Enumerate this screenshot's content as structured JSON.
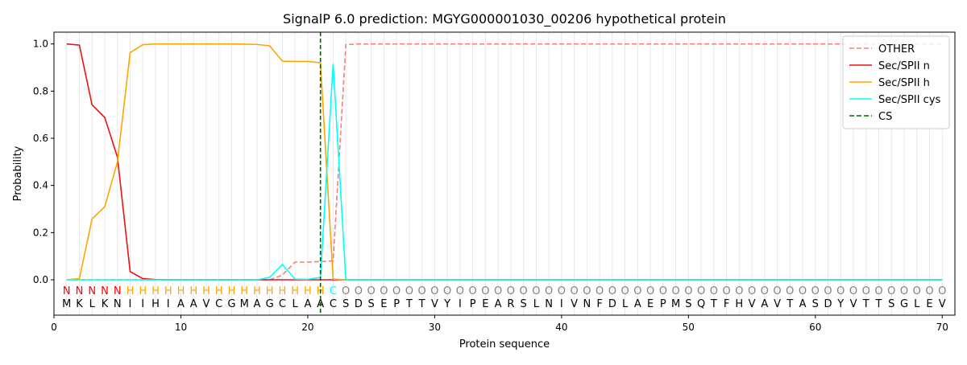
{
  "chart_data": {
    "type": "line",
    "title": "SignalP 6.0 prediction: MGYG000001030_00206 hypothetical protein",
    "xlabel": "Protein sequence",
    "ylabel": "Probability",
    "xlim": [
      0,
      71
    ],
    "ylim": [
      -0.15,
      1.05
    ],
    "xticks": [
      0,
      10,
      20,
      30,
      40,
      50,
      60,
      70
    ],
    "yticks": [
      {
        "value": 0,
        "label": "0.0"
      },
      {
        "value": 0.2,
        "label": "0.2"
      },
      {
        "value": 0.4,
        "label": "0.4"
      },
      {
        "value": 0.6,
        "label": "0.6"
      },
      {
        "value": 0.8,
        "label": "0.8"
      },
      {
        "value": 1,
        "label": "1.0"
      }
    ],
    "legend": "upper right",
    "x": [
      1,
      2,
      3,
      4,
      5,
      6,
      7,
      8,
      9,
      10,
      11,
      12,
      13,
      14,
      15,
      16,
      17,
      18,
      19,
      20,
      21,
      22,
      23,
      24,
      25,
      26,
      27,
      28,
      29,
      30,
      31,
      32,
      33,
      34,
      35,
      36,
      37,
      38,
      39,
      40,
      41,
      42,
      43,
      44,
      45,
      46,
      47,
      48,
      49,
      50,
      51,
      52,
      53,
      54,
      55,
      56,
      57,
      58,
      59,
      60,
      61,
      62,
      63,
      64,
      65,
      66,
      67,
      68,
      69,
      70
    ],
    "residues": [
      "M",
      "K",
      "L",
      "K",
      "N",
      "I",
      "I",
      "H",
      "I",
      "A",
      "A",
      "V",
      "C",
      "G",
      "M",
      "A",
      "G",
      "C",
      "L",
      "A",
      "A",
      "C",
      "S",
      "D",
      "S",
      "E",
      "P",
      "T",
      "T",
      "V",
      "Y",
      "I",
      "P",
      "E",
      "A",
      "R",
      "S",
      "L",
      "N",
      "I",
      "V",
      "N",
      "F",
      "D",
      "L",
      "A",
      "E",
      "P",
      "M",
      "S",
      "Q",
      "T",
      "F",
      "H",
      "V",
      "A",
      "V",
      "T",
      "A",
      "S",
      "D",
      "Y",
      "V",
      "T",
      "T",
      "S",
      "G",
      "L",
      "E",
      "V"
    ],
    "labels": [
      "N",
      "N",
      "N",
      "N",
      "N",
      "H",
      "H",
      "H",
      "H",
      "H",
      "H",
      "H",
      "H",
      "H",
      "H",
      "H",
      "H",
      "H",
      "H",
      "H",
      "H",
      "C",
      "O",
      "O",
      "O",
      "O",
      "O",
      "O",
      "O",
      "O",
      "O",
      "O",
      "O",
      "O",
      "O",
      "O",
      "O",
      "O",
      "O",
      "O",
      "O",
      "O",
      "O",
      "O",
      "O",
      "O",
      "O",
      "O",
      "O",
      "O",
      "O",
      "O",
      "O",
      "O",
      "O",
      "O",
      "O",
      "O",
      "O",
      "O",
      "O",
      "O",
      "O",
      "O",
      "O",
      "O",
      "O",
      "O",
      "O",
      "O"
    ],
    "label_colors": {
      "N": "red",
      "H": "orange",
      "C": "cyan",
      "O": "gray"
    },
    "series": [
      {
        "name": "OTHER",
        "color": "#f08080",
        "dashed": true,
        "values": [
          0,
          0,
          0,
          0,
          0,
          0,
          0,
          0,
          0,
          0,
          0,
          0,
          0,
          0,
          0,
          0,
          0,
          0.02,
          0.075,
          0.075,
          0.077,
          0.08,
          0.997,
          1,
          1,
          1,
          1,
          1,
          1,
          1,
          1,
          1,
          1,
          1,
          1,
          1,
          1,
          1,
          1,
          1,
          1,
          1,
          1,
          1,
          1,
          1,
          1,
          1,
          1,
          1,
          1,
          1,
          1,
          1,
          1,
          1,
          1,
          1,
          1,
          1,
          1,
          1,
          1,
          1,
          1,
          1,
          1,
          1,
          1,
          1
        ]
      },
      {
        "name": "Sec/SPII n",
        "color": "#ee1111",
        "values": [
          1.0,
          0.995,
          0.742,
          0.688,
          0.52,
          0.035,
          0.005,
          0.001,
          0,
          0,
          0,
          0,
          0,
          0,
          0,
          0,
          0,
          0,
          0,
          0,
          0,
          0,
          0,
          0,
          0,
          0,
          0,
          0,
          0,
          0,
          0,
          0,
          0,
          0,
          0,
          0,
          0,
          0,
          0,
          0,
          0,
          0,
          0,
          0,
          0,
          0,
          0,
          0,
          0,
          0,
          0,
          0,
          0,
          0,
          0,
          0,
          0,
          0,
          0,
          0,
          0,
          0,
          0,
          0,
          0,
          0,
          0,
          0,
          0,
          0
        ]
      },
      {
        "name": "Sec/SPII h",
        "color": "#ffa500",
        "values": [
          0,
          0.005,
          0.258,
          0.31,
          0.5,
          0.963,
          0.997,
          1,
          1,
          1,
          1,
          1,
          1,
          1,
          0.999,
          0.998,
          0.992,
          0.927,
          0.926,
          0.926,
          0.92,
          0.003,
          0,
          0,
          0,
          0,
          0,
          0,
          0,
          0,
          0,
          0,
          0,
          0,
          0,
          0,
          0,
          0,
          0,
          0,
          0,
          0,
          0,
          0,
          0,
          0,
          0,
          0,
          0,
          0,
          0,
          0,
          0,
          0,
          0,
          0,
          0,
          0,
          0,
          0,
          0,
          0,
          0,
          0,
          0,
          0,
          0,
          0,
          0,
          0
        ]
      },
      {
        "name": "Sec/SPII cys",
        "color": "#00ffff",
        "values": [
          0,
          0,
          0,
          0,
          0,
          0,
          0,
          0,
          0,
          0,
          0,
          0,
          0,
          0,
          0,
          0,
          0.01,
          0.065,
          0.003,
          0.002,
          0.01,
          0.915,
          0,
          0,
          0,
          0,
          0,
          0,
          0,
          0,
          0,
          0,
          0,
          0,
          0,
          0,
          0,
          0,
          0,
          0,
          0,
          0,
          0,
          0,
          0,
          0,
          0,
          0,
          0,
          0,
          0,
          0,
          0,
          0,
          0,
          0,
          0,
          0,
          0,
          0,
          0,
          0,
          0,
          0,
          0,
          0,
          0,
          0,
          0,
          0
        ]
      }
    ],
    "cs": {
      "name": "CS",
      "color": "#006400",
      "x": 21
    }
  }
}
